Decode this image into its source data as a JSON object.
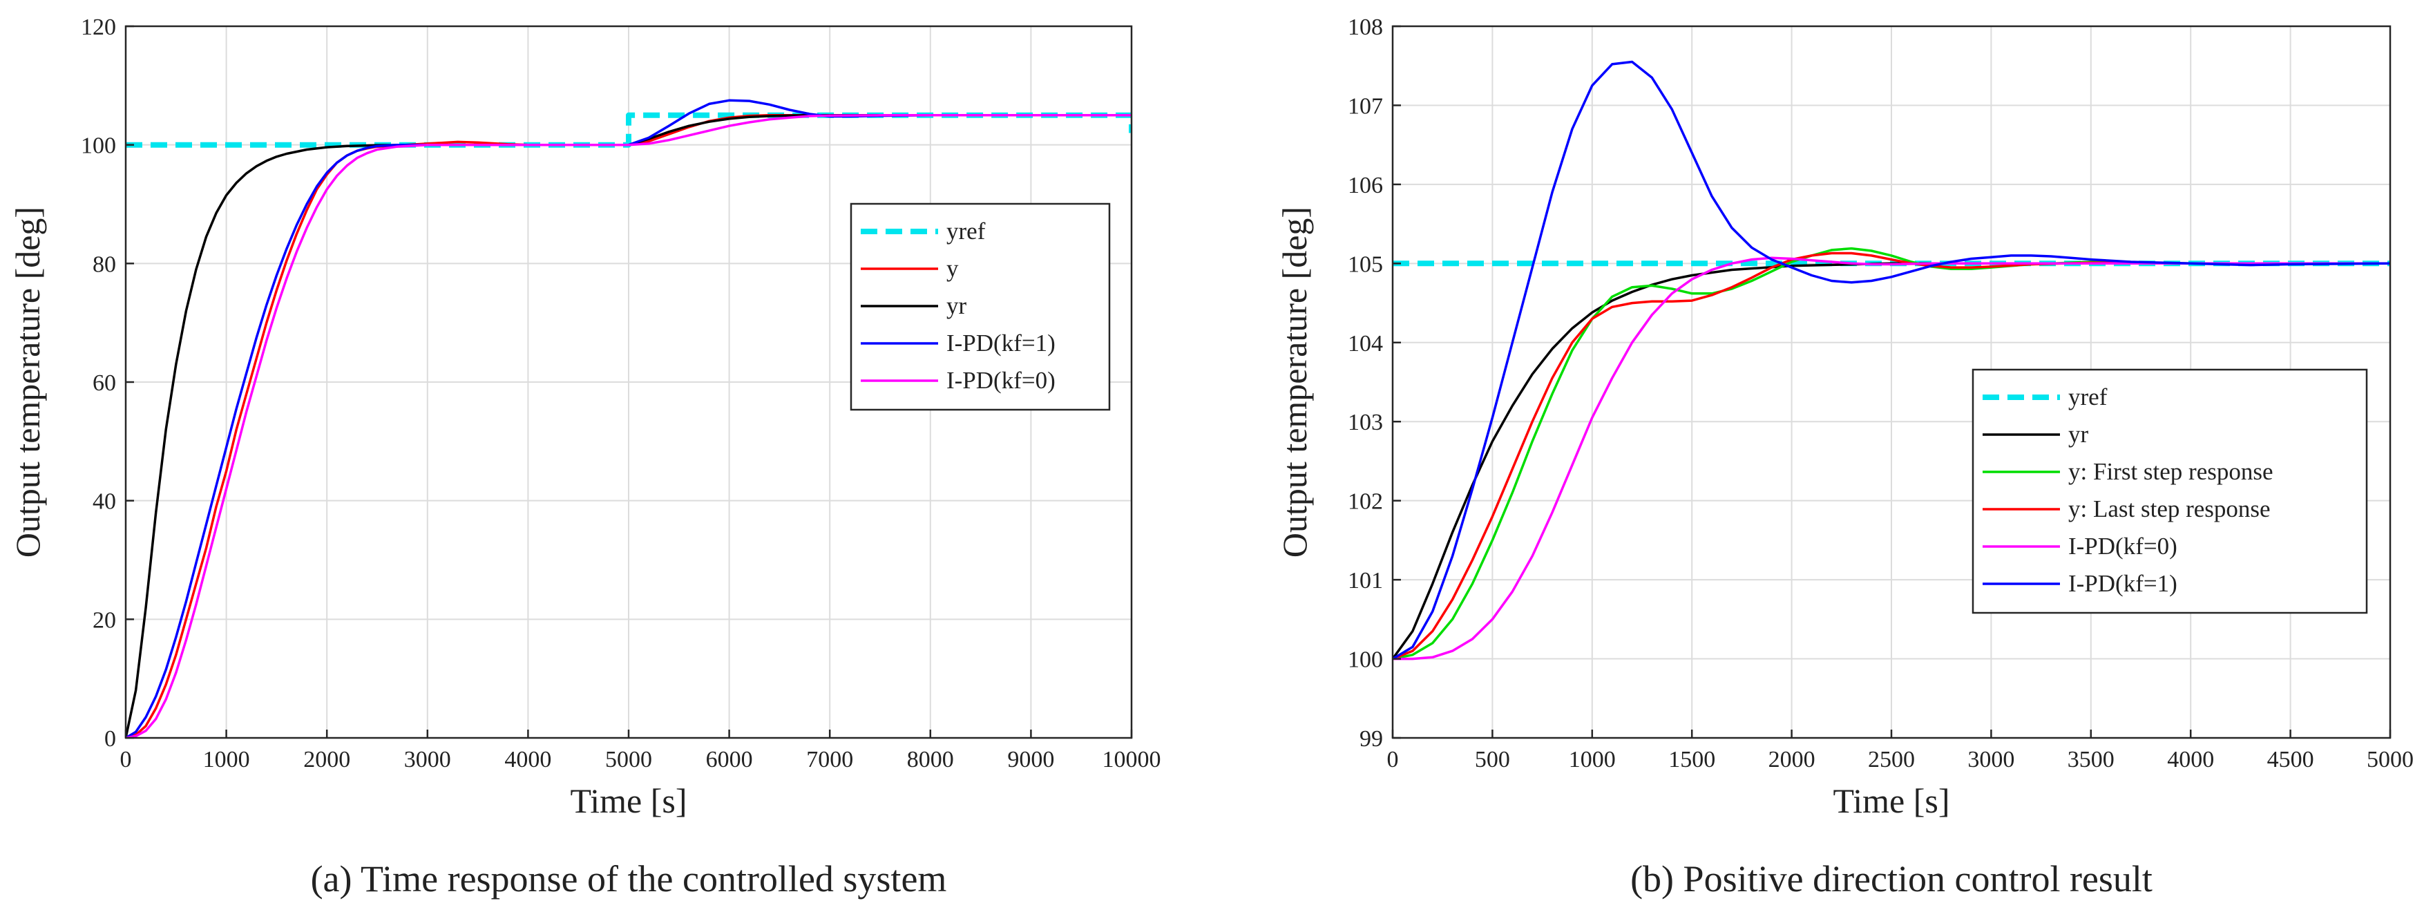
{
  "chart_data": [
    {
      "id": "a",
      "type": "line",
      "caption": "(a) Time response of the controlled system",
      "xlabel": "Time [s]",
      "ylabel": "Output temperature [deg]",
      "xlim": [
        0,
        10000
      ],
      "ylim": [
        0,
        120
      ],
      "xticks": [
        0,
        1000,
        2000,
        3000,
        4000,
        5000,
        6000,
        7000,
        8000,
        9000,
        10000
      ],
      "yticks": [
        0,
        20,
        40,
        60,
        80,
        100,
        120
      ],
      "grid": true,
      "legend_position": "right",
      "series": [
        {
          "name": "yref",
          "color": "#00e5ee",
          "style": "dashed",
          "x": [
            0,
            5000,
            5000,
            10000,
            10000
          ],
          "y": [
            100,
            100,
            105,
            105,
            102
          ]
        },
        {
          "name": "y",
          "color": "#ff0000",
          "style": "solid",
          "x": [
            0,
            100,
            200,
            300,
            400,
            500,
            600,
            700,
            800,
            900,
            1000,
            1100,
            1200,
            1300,
            1400,
            1500,
            1600,
            1700,
            1800,
            1900,
            2000,
            2100,
            2200,
            2300,
            2400,
            2500,
            2700,
            3000,
            3300,
            3500,
            3800,
            4000,
            4500,
            5000,
            5200,
            5400,
            5600,
            5800,
            6000,
            6200,
            6400,
            6600,
            6800,
            7000,
            7500,
            8000,
            9000,
            10000
          ],
          "y": [
            0,
            0.5,
            2,
            5,
            9,
            14,
            20,
            26,
            32,
            39,
            45,
            52,
            58,
            64,
            70,
            75.5,
            80.5,
            85,
            89,
            92.5,
            95,
            97,
            98.2,
            99,
            99.4,
            99.7,
            99.9,
            100.2,
            100.5,
            100.4,
            100.1,
            100,
            100,
            100,
            100.6,
            101.8,
            103,
            104,
            104.6,
            104.9,
            105,
            105,
            105,
            105,
            105,
            105,
            105,
            105
          ]
        },
        {
          "name": "yr",
          "color": "#000000",
          "style": "solid",
          "x": [
            0,
            100,
            200,
            300,
            400,
            500,
            600,
            700,
            800,
            900,
            1000,
            1100,
            1200,
            1300,
            1400,
            1500,
            1600,
            1800,
            2000,
            2200,
            2500,
            3000,
            4000,
            5000,
            5200,
            5400,
            5600,
            5800,
            6000,
            6200,
            6400,
            6600,
            6800,
            7000,
            7500,
            8000,
            9000,
            10000
          ],
          "y": [
            0,
            8,
            22,
            38,
            52,
            63,
            72,
            79,
            84.5,
            88.5,
            91.5,
            93.6,
            95.2,
            96.4,
            97.3,
            98,
            98.5,
            99.2,
            99.6,
            99.8,
            99.95,
            100,
            100,
            100,
            101,
            102.2,
            103.2,
            103.9,
            104.4,
            104.7,
            104.85,
            104.95,
            105,
            105,
            105,
            105,
            105,
            105
          ]
        },
        {
          "name": "I-PD(kf=1)",
          "color": "#0000ff",
          "style": "solid",
          "x": [
            0,
            100,
            200,
            300,
            400,
            500,
            600,
            700,
            800,
            900,
            1000,
            1100,
            1200,
            1300,
            1400,
            1500,
            1600,
            1700,
            1800,
            1900,
            2000,
            2100,
            2200,
            2300,
            2400,
            2500,
            2700,
            3000,
            3500,
            4000,
            5000,
            5200,
            5400,
            5600,
            5800,
            6000,
            6200,
            6400,
            6600,
            6800,
            7000,
            7200,
            7500,
            8000,
            9000,
            10000
          ],
          "y": [
            0,
            1,
            3.5,
            7,
            11.5,
            17,
            23,
            29.5,
            36,
            42.5,
            49,
            55.5,
            61.5,
            67.5,
            73,
            78,
            82.5,
            86.5,
            90,
            93,
            95.3,
            97,
            98.2,
            99,
            99.5,
            99.8,
            100,
            100,
            100,
            100,
            100,
            101.2,
            103.2,
            105.3,
            106.9,
            107.5,
            107.4,
            106.8,
            105.9,
            105.2,
            104.8,
            104.8,
            104.9,
            105,
            105,
            105
          ]
        },
        {
          "name": "I-PD(kf=0)",
          "color": "#ff00ff",
          "style": "solid",
          "x": [
            0,
            100,
            200,
            300,
            400,
            500,
            600,
            700,
            800,
            900,
            1000,
            1100,
            1200,
            1300,
            1400,
            1500,
            1600,
            1700,
            1800,
            1900,
            2000,
            2100,
            2200,
            2300,
            2400,
            2500,
            2700,
            3000,
            3500,
            4000,
            5000,
            5200,
            5400,
            5600,
            5800,
            6000,
            6200,
            6400,
            6600,
            6800,
            7000,
            7500,
            8000,
            9000,
            10000
          ],
          "y": [
            0,
            0.3,
            1.2,
            3.2,
            6.5,
            11,
            16.5,
            22.5,
            29,
            35.5,
            42,
            48.5,
            55,
            61,
            67,
            72.5,
            77.5,
            82,
            86,
            89.5,
            92.5,
            94.8,
            96.5,
            97.8,
            98.6,
            99.2,
            99.7,
            100,
            100,
            100,
            100,
            100.2,
            100.8,
            101.6,
            102.4,
            103.2,
            103.8,
            104.3,
            104.6,
            104.85,
            104.95,
            105,
            105,
            105,
            105
          ]
        }
      ]
    },
    {
      "id": "b",
      "type": "line",
      "caption": "(b) Positive direction control result",
      "xlabel": "Time [s]",
      "ylabel": "Output temperature [deg]",
      "xlim": [
        0,
        5000
      ],
      "ylim": [
        99,
        108
      ],
      "xticks": [
        0,
        500,
        1000,
        1500,
        2000,
        2500,
        3000,
        3500,
        4000,
        4500,
        5000
      ],
      "yticks": [
        99,
        100,
        101,
        102,
        103,
        104,
        105,
        106,
        107,
        108
      ],
      "grid": true,
      "legend_position": "lower-right",
      "series": [
        {
          "name": "yref",
          "color": "#00e5ee",
          "style": "dashed",
          "x": [
            0,
            5000
          ],
          "y": [
            105,
            105
          ]
        },
        {
          "name": "yr",
          "color": "#000000",
          "style": "solid",
          "x": [
            0,
            100,
            200,
            300,
            400,
            500,
            600,
            700,
            800,
            900,
            1000,
            1100,
            1200,
            1300,
            1400,
            1500,
            1700,
            2000,
            2500,
            3000,
            3500,
            4000,
            4500,
            5000
          ],
          "y": [
            100,
            100.35,
            100.95,
            101.6,
            102.2,
            102.75,
            103.2,
            103.6,
            103.92,
            104.18,
            104.38,
            104.53,
            104.64,
            104.73,
            104.8,
            104.85,
            104.92,
            104.97,
            105,
            105,
            105,
            105,
            105,
            105
          ]
        },
        {
          "name": "y: First step response",
          "color": "#00dd00",
          "style": "solid",
          "x": [
            0,
            100,
            200,
            300,
            400,
            500,
            600,
            700,
            800,
            900,
            1000,
            1100,
            1200,
            1300,
            1400,
            1500,
            1600,
            1700,
            1800,
            1900,
            2000,
            2100,
            2200,
            2300,
            2400,
            2500,
            2600,
            2700,
            2800,
            2900,
            3000,
            3200,
            3500,
            4000,
            4500,
            5000
          ],
          "y": [
            100,
            100.05,
            100.2,
            100.5,
            100.95,
            101.5,
            102.1,
            102.75,
            103.35,
            103.9,
            104.3,
            104.58,
            104.7,
            104.72,
            104.68,
            104.62,
            104.62,
            104.68,
            104.78,
            104.9,
            105.02,
            105.1,
            105.17,
            105.19,
            105.16,
            105.1,
            105.02,
            104.96,
            104.93,
            104.93,
            104.95,
            104.99,
            105.02,
            105,
            105,
            105
          ]
        },
        {
          "name": "y: Last step response",
          "color": "#ff0000",
          "style": "solid",
          "x": [
            0,
            100,
            200,
            300,
            400,
            500,
            600,
            700,
            800,
            900,
            1000,
            1100,
            1200,
            1300,
            1400,
            1500,
            1600,
            1700,
            1800,
            1900,
            2000,
            2100,
            2200,
            2300,
            2400,
            2500,
            2600,
            2700,
            2800,
            2900,
            3000,
            3200,
            3500,
            4000,
            4500,
            5000
          ],
          "y": [
            100,
            100.1,
            100.35,
            100.75,
            101.25,
            101.8,
            102.4,
            103,
            103.55,
            104,
            104.3,
            104.45,
            104.5,
            104.52,
            104.52,
            104.53,
            104.6,
            104.7,
            104.82,
            104.95,
            105.05,
            105.1,
            105.13,
            105.13,
            105.1,
            105.05,
            105,
            104.97,
            104.95,
            104.95,
            104.96,
            104.99,
            105.01,
            105,
            105,
            105
          ]
        },
        {
          "name": "I-PD(kf=0)",
          "color": "#ff00ff",
          "style": "solid",
          "x": [
            0,
            100,
            200,
            300,
            400,
            500,
            600,
            700,
            800,
            900,
            1000,
            1100,
            1200,
            1300,
            1400,
            1500,
            1600,
            1700,
            1800,
            1900,
            2000,
            2100,
            2200,
            2300,
            2400,
            2500,
            2700,
            3000,
            3500,
            4000,
            4500,
            5000
          ],
          "y": [
            100,
            100,
            100.02,
            100.1,
            100.25,
            100.5,
            100.85,
            101.3,
            101.85,
            102.45,
            103.05,
            103.55,
            104,
            104.35,
            104.62,
            104.8,
            104.92,
            105,
            105.05,
            105.07,
            105.06,
            105.04,
            105.02,
            105,
            104.99,
            104.99,
            105,
            105,
            105,
            105,
            105,
            105
          ]
        },
        {
          "name": "I-PD(kf=1)",
          "color": "#0000ff",
          "style": "solid",
          "x": [
            0,
            100,
            200,
            300,
            400,
            500,
            600,
            700,
            800,
            900,
            1000,
            1100,
            1200,
            1300,
            1400,
            1500,
            1600,
            1700,
            1800,
            1900,
            2000,
            2100,
            2200,
            2300,
            2400,
            2500,
            2600,
            2700,
            2800,
            2900,
            3000,
            3100,
            3200,
            3300,
            3400,
            3500,
            3700,
            4000,
            4300,
            4500,
            5000
          ],
          "y": [
            100,
            100.15,
            100.6,
            101.3,
            102.15,
            103.05,
            104.0,
            104.95,
            105.9,
            106.7,
            107.25,
            107.52,
            107.55,
            107.35,
            106.95,
            106.4,
            105.85,
            105.45,
            105.2,
            105.05,
            104.95,
            104.85,
            104.78,
            104.76,
            104.78,
            104.83,
            104.9,
            104.97,
            105.02,
            105.06,
            105.08,
            105.1,
            105.1,
            105.09,
            105.07,
            105.05,
            105.02,
            105,
            104.98,
            104.99,
            105
          ]
        }
      ]
    }
  ]
}
